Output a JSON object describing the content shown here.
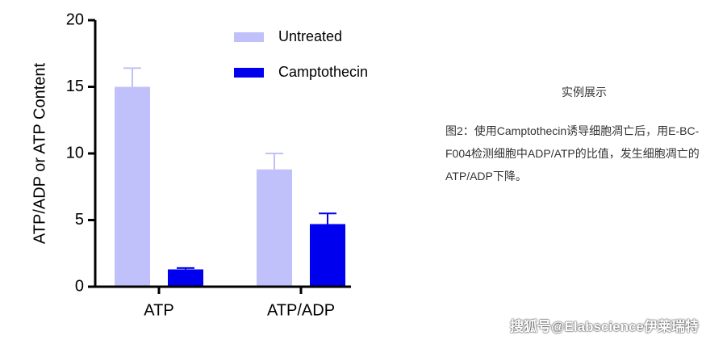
{
  "chart_data": {
    "type": "bar",
    "y_label": "ATP/ADP or ATP Content",
    "categories": [
      "ATP",
      "ATP/ADP"
    ],
    "series": [
      {
        "name": "Untreated",
        "color": "#c0c0fa",
        "values": [
          15,
          8.8
        ],
        "errors": [
          1.4,
          1.2
        ]
      },
      {
        "name": "Camptothecin",
        "color": "#0000ee",
        "values": [
          1.3,
          4.7
        ],
        "errors": [
          0.1,
          0.8
        ]
      }
    ],
    "ylim": [
      0,
      20
    ],
    "yticks": [
      0,
      5,
      10,
      15,
      20
    ],
    "grid": false
  },
  "page": {
    "heading": "实例展示",
    "caption": "图2：使用Camptothecin诱导细胞凋亡后，用E-BC-F004检测细胞中ADP/ATP的比值，发生细胞凋亡的ATP/ADP下降。",
    "watermark": "搜狐号@Elabscience伊莱瑞特"
  }
}
